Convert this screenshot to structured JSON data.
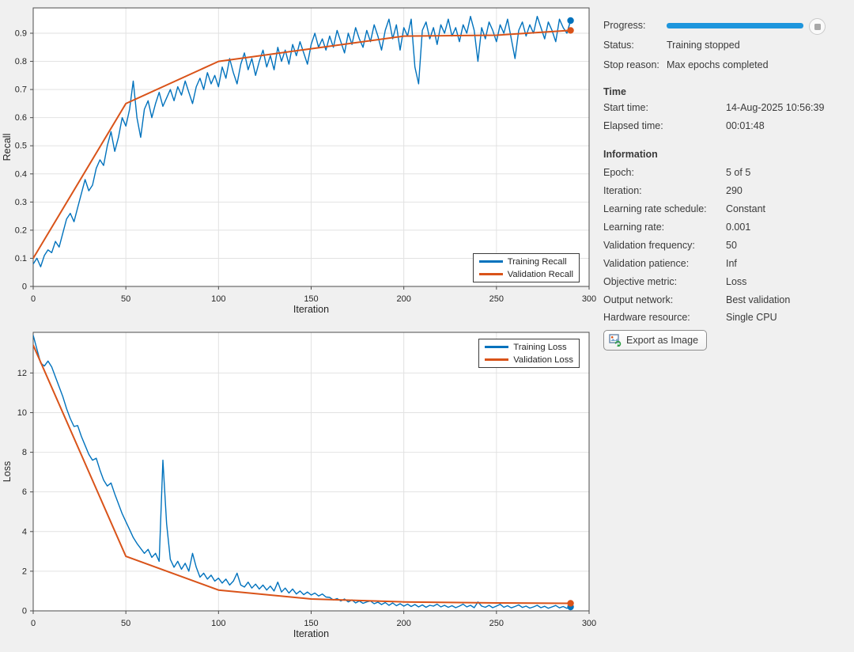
{
  "panel": {
    "progress_label": "Progress:",
    "progress_percent": 100,
    "status": {
      "label": "Status:",
      "value": "Training stopped"
    },
    "stop_reason": {
      "label": "Stop reason:",
      "value": "Max epochs completed"
    },
    "time_heading": "Time",
    "time_rows": [
      {
        "label": "Start time:",
        "value": "14-Aug-2025 10:56:39"
      },
      {
        "label": "Elapsed time:",
        "value": "00:01:48"
      }
    ],
    "info_heading": "Information",
    "info_rows": [
      {
        "label": "Epoch:",
        "value": "5 of 5"
      },
      {
        "label": "Iteration:",
        "value": "290"
      },
      {
        "label": "Learning rate schedule:",
        "value": "Constant"
      },
      {
        "label": "Learning rate:",
        "value": "0.001"
      },
      {
        "label": "Validation frequency:",
        "value": "50"
      },
      {
        "label": "Validation patience:",
        "value": "Inf"
      },
      {
        "label": "Objective metric:",
        "value": "Loss"
      },
      {
        "label": "Output network:",
        "value": "Best validation"
      },
      {
        "label": "Hardware resource:",
        "value": "Single CPU"
      }
    ],
    "export_label": "Export as Image",
    "stop_icon": "stop-square"
  },
  "colors": {
    "training": "#0072BD",
    "validation": "#D95319",
    "progress_bar": "#1e96dd",
    "grid": "#e2e2e2",
    "axis_box": "#4d4d4d",
    "plot_bg": "#ffffff",
    "figure_bg": "#f0f0f0"
  },
  "chart_data": [
    {
      "type": "line",
      "xlabel": "Iteration",
      "ylabel": "Recall",
      "xlim": [
        0,
        300
      ],
      "ylim": [
        0,
        0.99
      ],
      "xticks": [
        0,
        50,
        100,
        150,
        200,
        250,
        300
      ],
      "yticks": [
        0,
        0.1,
        0.2,
        0.3,
        0.4,
        0.5,
        0.6,
        0.7,
        0.8,
        0.9
      ],
      "grid": true,
      "legend_position": "bottom-right",
      "series": [
        {
          "name": "Training Recall",
          "color": "#0072BD",
          "width": 1.4,
          "end_marker": true,
          "x_start": 0,
          "x_step": 2,
          "values": [
            0.08,
            0.1,
            0.07,
            0.11,
            0.13,
            0.12,
            0.16,
            0.14,
            0.19,
            0.24,
            0.26,
            0.23,
            0.28,
            0.33,
            0.38,
            0.34,
            0.36,
            0.42,
            0.45,
            0.43,
            0.5,
            0.55,
            0.48,
            0.53,
            0.6,
            0.57,
            0.63,
            0.73,
            0.6,
            0.53,
            0.63,
            0.66,
            0.6,
            0.65,
            0.69,
            0.64,
            0.67,
            0.7,
            0.66,
            0.71,
            0.68,
            0.73,
            0.69,
            0.65,
            0.71,
            0.74,
            0.7,
            0.76,
            0.72,
            0.75,
            0.71,
            0.78,
            0.74,
            0.81,
            0.76,
            0.72,
            0.79,
            0.83,
            0.77,
            0.81,
            0.75,
            0.8,
            0.84,
            0.78,
            0.82,
            0.77,
            0.85,
            0.8,
            0.84,
            0.79,
            0.86,
            0.82,
            0.87,
            0.83,
            0.79,
            0.86,
            0.9,
            0.85,
            0.88,
            0.84,
            0.89,
            0.85,
            0.91,
            0.87,
            0.83,
            0.9,
            0.86,
            0.92,
            0.88,
            0.85,
            0.91,
            0.87,
            0.93,
            0.89,
            0.84,
            0.91,
            0.95,
            0.88,
            0.93,
            0.84,
            0.92,
            0.89,
            0.95,
            0.78,
            0.72,
            0.91,
            0.94,
            0.88,
            0.92,
            0.86,
            0.93,
            0.9,
            0.95,
            0.89,
            0.92,
            0.87,
            0.93,
            0.9,
            0.96,
            0.91,
            0.8,
            0.92,
            0.88,
            0.94,
            0.91,
            0.87,
            0.93,
            0.9,
            0.95,
            0.88,
            0.81,
            0.91,
            0.94,
            0.89,
            0.93,
            0.9,
            0.96,
            0.92,
            0.88,
            0.94,
            0.91,
            0.87,
            0.95,
            0.92,
            0.9,
            0.945
          ]
        },
        {
          "name": "Validation Recall",
          "color": "#D95319",
          "width": 2,
          "end_marker": true,
          "x": [
            0,
            50,
            100,
            150,
            200,
            250,
            290
          ],
          "values": [
            0.1,
            0.65,
            0.8,
            0.845,
            0.89,
            0.893,
            0.91
          ]
        }
      ]
    },
    {
      "type": "line",
      "xlabel": "Iteration",
      "ylabel": "Loss",
      "xlim": [
        0,
        300
      ],
      "ylim": [
        0,
        14.05
      ],
      "xticks": [
        0,
        50,
        100,
        150,
        200,
        250,
        300
      ],
      "yticks": [
        0,
        2,
        4,
        6,
        8,
        10,
        12
      ],
      "grid": true,
      "legend_position": "top-right",
      "series": [
        {
          "name": "Training Loss",
          "color": "#0072BD",
          "width": 1.4,
          "end_marker": true,
          "x_start": 0,
          "x_step": 2,
          "values": [
            13.9,
            13.2,
            12.5,
            12.35,
            12.6,
            12.3,
            11.8,
            11.3,
            10.8,
            10.2,
            9.7,
            9.3,
            9.35,
            8.8,
            8.35,
            7.9,
            7.6,
            7.7,
            7.1,
            6.6,
            6.3,
            6.45,
            5.9,
            5.4,
            4.9,
            4.5,
            4.1,
            3.7,
            3.4,
            3.15,
            2.9,
            3.1,
            2.7,
            2.9,
            2.5,
            7.6,
            4.4,
            2.6,
            2.2,
            2.5,
            2.1,
            2.4,
            2.0,
            2.9,
            2.2,
            1.7,
            1.9,
            1.6,
            1.8,
            1.5,
            1.65,
            1.4,
            1.6,
            1.3,
            1.5,
            1.9,
            1.3,
            1.2,
            1.45,
            1.15,
            1.35,
            1.1,
            1.3,
            1.05,
            1.25,
            1.0,
            1.45,
            0.95,
            1.15,
            0.9,
            1.1,
            0.85,
            1.0,
            0.82,
            0.95,
            0.8,
            0.9,
            0.75,
            0.85,
            0.7,
            0.68,
            0.55,
            0.62,
            0.5,
            0.6,
            0.45,
            0.55,
            0.4,
            0.5,
            0.38,
            0.45,
            0.5,
            0.36,
            0.44,
            0.32,
            0.42,
            0.28,
            0.4,
            0.26,
            0.36,
            0.24,
            0.34,
            0.22,
            0.32,
            0.2,
            0.3,
            0.18,
            0.28,
            0.24,
            0.34,
            0.2,
            0.28,
            0.18,
            0.26,
            0.16,
            0.24,
            0.34,
            0.2,
            0.28,
            0.16,
            0.45,
            0.24,
            0.18,
            0.28,
            0.16,
            0.24,
            0.33,
            0.18,
            0.26,
            0.15,
            0.22,
            0.3,
            0.17,
            0.24,
            0.14,
            0.2,
            0.28,
            0.16,
            0.23,
            0.13,
            0.2,
            0.27,
            0.15,
            0.22,
            0.13,
            0.2
          ]
        },
        {
          "name": "Validation Loss",
          "color": "#D95319",
          "width": 2,
          "end_marker": true,
          "x": [
            0,
            50,
            100,
            150,
            200,
            250,
            290
          ],
          "values": [
            13.4,
            2.75,
            1.05,
            0.6,
            0.45,
            0.4,
            0.38
          ]
        }
      ]
    }
  ]
}
